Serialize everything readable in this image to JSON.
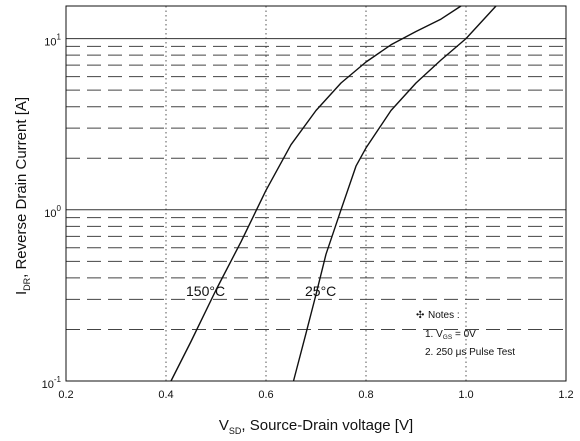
{
  "chart_data": {
    "type": "line",
    "x_axis": {
      "label_main": "V",
      "label_sub": "SD",
      "label_rest": ", Source-Drain voltage [V]",
      "range": [
        0.2,
        1.2
      ],
      "ticks": [
        "0.2",
        "0.4",
        "0.6",
        "0.8",
        "1.0",
        "1.2"
      ]
    },
    "y_axis": {
      "label_main": "I",
      "label_sub": "DR",
      "label_rest": ", Reverse Drain Current [A]",
      "scale": "log",
      "range": [
        0.1,
        15.5
      ],
      "ticks": [
        {
          "value": 0.1,
          "base": "10",
          "exp": "-1"
        },
        {
          "value": 1,
          "base": "10",
          "exp": "0"
        },
        {
          "value": 10,
          "base": "10",
          "exp": "1"
        }
      ]
    },
    "grid": true,
    "series": [
      {
        "name": "150°C",
        "x": [
          0.41,
          0.45,
          0.5,
          0.55,
          0.6,
          0.65,
          0.7,
          0.75,
          0.8,
          0.85,
          0.9,
          0.95,
          0.99
        ],
        "y": [
          0.1,
          0.17,
          0.34,
          0.65,
          1.3,
          2.4,
          3.8,
          5.5,
          7.3,
          9.2,
          11.0,
          13.0,
          15.5
        ]
      },
      {
        "name": "25°C",
        "x": [
          0.655,
          0.68,
          0.7,
          0.72,
          0.75,
          0.78,
          0.8,
          0.85,
          0.9,
          0.95,
          1.0,
          1.06
        ],
        "y": [
          0.1,
          0.19,
          0.32,
          0.55,
          1.0,
          1.8,
          2.3,
          3.8,
          5.5,
          7.5,
          10.0,
          15.5
        ]
      }
    ],
    "annotations": {
      "label_150": "150°C",
      "label_25": "25°C",
      "notes_title": "Notes :",
      "notes_symbol": "✣",
      "note1_prefix": "1. V",
      "note1_sub": "GS",
      "note1_rest": " = 0V",
      "note2": "2. 250 μs Pulse Test"
    }
  }
}
